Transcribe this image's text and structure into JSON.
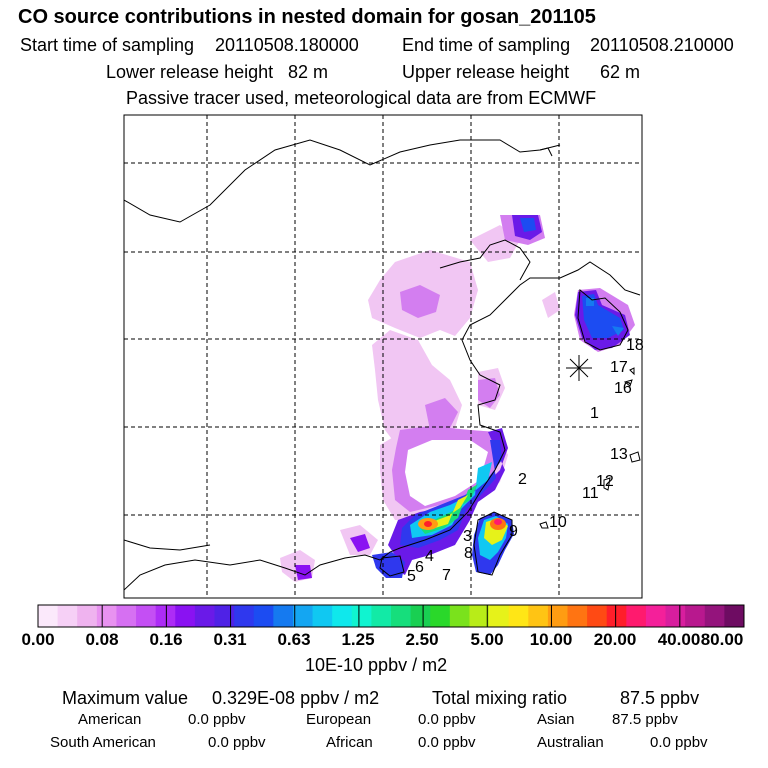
{
  "header": {
    "title": "CO  source contributions in nested domain for gosan_201105",
    "start_label": "Start time of sampling",
    "start_value": "20110508.180000",
    "end_label": "End time of sampling",
    "end_value": "20110508.210000",
    "lower_label": "Lower release height",
    "lower_value": "82 m",
    "upper_label": "Upper release height",
    "upper_value": "62 m",
    "note": "Passive tracer used, meteorological data are from ECMWF"
  },
  "map": {
    "region_labels": [
      "1",
      "2",
      "3",
      "4",
      "5",
      "6",
      "7",
      "8",
      "9",
      "10",
      "11",
      "12",
      "13",
      "16",
      "17",
      "18"
    ],
    "receptor_marker": "star-marker"
  },
  "colorbar": {
    "colors": [
      "#fbe9fb",
      "#f6d0f6",
      "#efb3ef",
      "#e892f0",
      "#d670f2",
      "#c44ff4",
      "#ad2cf6",
      "#8a12f2",
      "#6a1ae8",
      "#4f22e6",
      "#2f38ee",
      "#1c4cf2",
      "#157af0",
      "#14a6f2",
      "#10c8f2",
      "#0fe8ec",
      "#10f4d0",
      "#12eaa6",
      "#16de7c",
      "#19cf52",
      "#2ad82a",
      "#7ae21c",
      "#b8ec18",
      "#e6f21a",
      "#ffe616",
      "#ffc414",
      "#ff9c12",
      "#ff7412",
      "#ff4a14",
      "#ff1e2a",
      "#ff1a6e",
      "#f4209a",
      "#d81e9e",
      "#b8188e",
      "#94147c",
      "#6e0c62"
    ],
    "tick_labels": [
      "0.00",
      "0.08",
      "0.16",
      "0.31",
      "0.63",
      "1.25",
      "2.50",
      "5.00",
      "10.00",
      "20.00",
      "40.00",
      "80.00"
    ],
    "unit": "10E-10 ppbv / m2"
  },
  "stats": {
    "max_label": "Maximum value",
    "max_value": "0.329E-08 ppbv / m2",
    "total_label": "Total mixing ratio",
    "total_value": "87.5 ppbv"
  },
  "regions": [
    {
      "name": "American",
      "value": "0.0 ppbv"
    },
    {
      "name": "European",
      "value": "0.0 ppbv"
    },
    {
      "name": "Asian",
      "value": "87.5 ppbv"
    },
    {
      "name": "South American",
      "value": "0.0 ppbv"
    },
    {
      "name": "African",
      "value": "0.0 ppbv"
    },
    {
      "name": "Australian",
      "value": "0.0 ppbv"
    }
  ]
}
